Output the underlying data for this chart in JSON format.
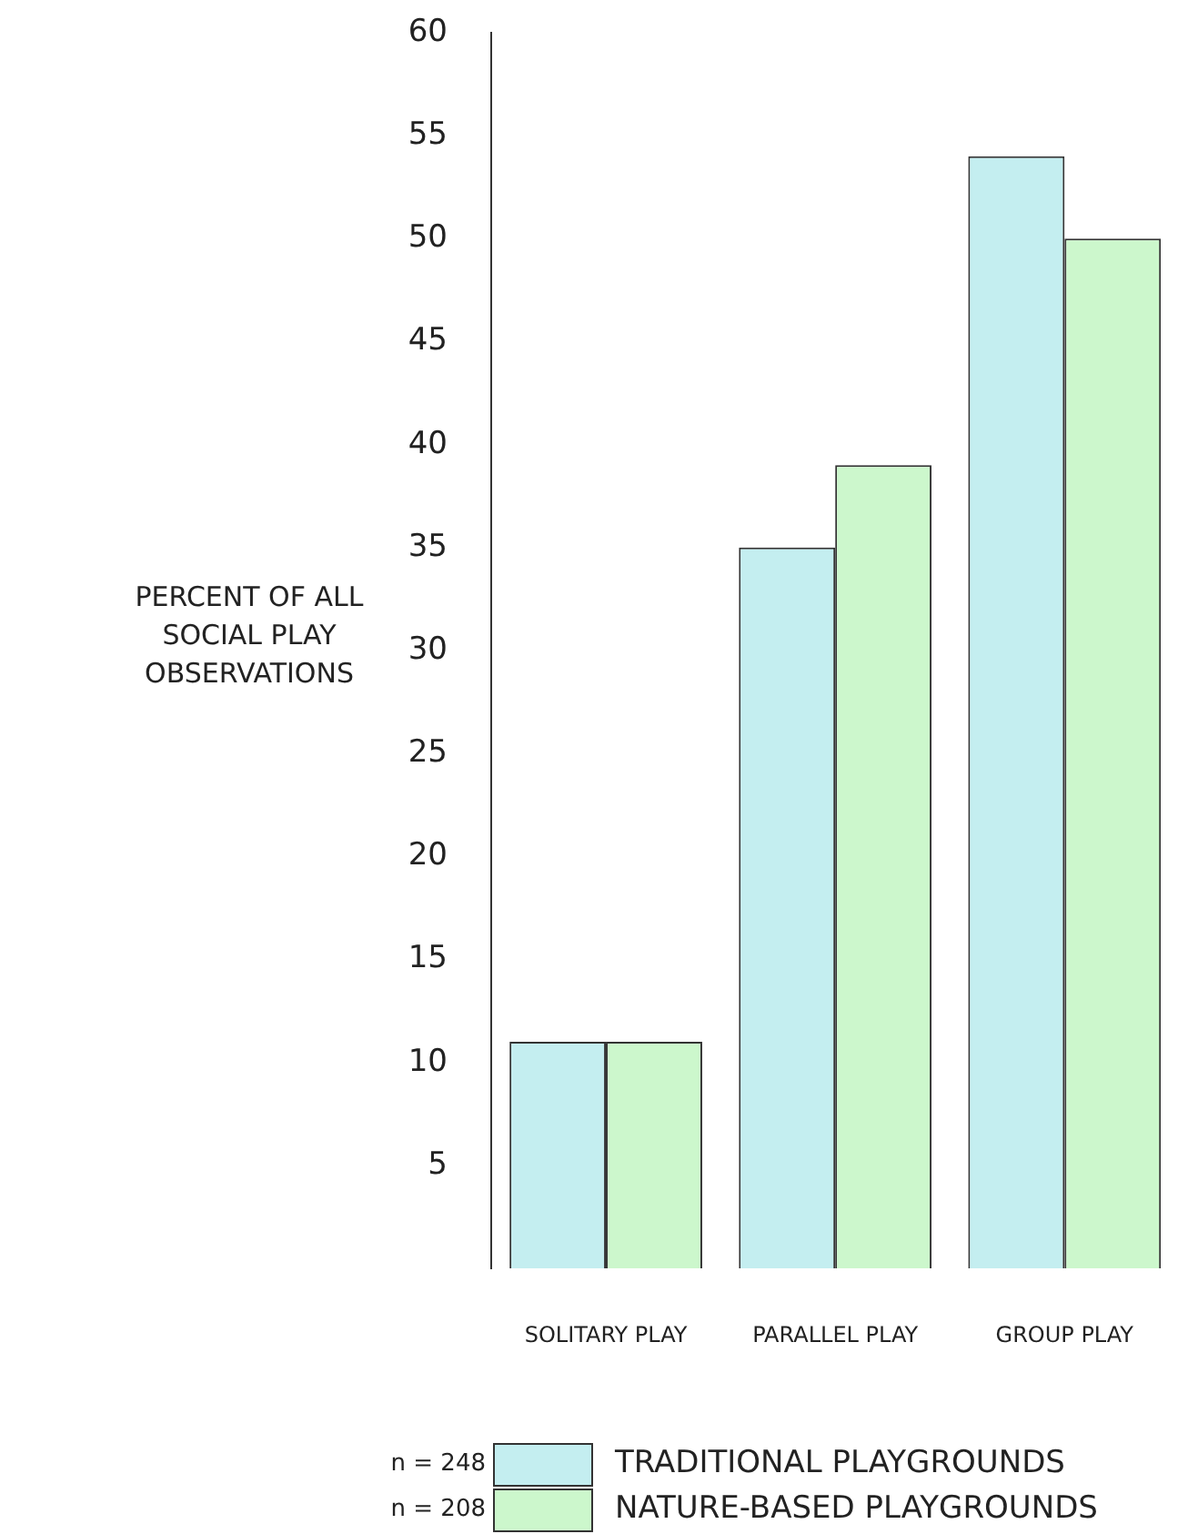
{
  "chart_data": {
    "type": "bar",
    "ylabel": "PERCENT OF ALL SOCIAL PLAY OBSERVATIONS",
    "categories": [
      "SOLITARY PLAY",
      "PARALLEL PLAY",
      "GROUP PLAY"
    ],
    "series": [
      {
        "name": "TRADITIONAL PLAYGROUNDS",
        "color": "#c4eef0",
        "values": [
          11,
          35,
          54
        ]
      },
      {
        "name": "NATURE-BASED PLAYGROUNDS",
        "color": "#ccf7cc",
        "values": [
          11,
          39,
          50
        ]
      }
    ],
    "ylim": [
      0,
      60
    ],
    "yticks": [
      5,
      10,
      15,
      20,
      25,
      30,
      35,
      40,
      45,
      50,
      55,
      60
    ],
    "grid": false,
    "legend": "bottom",
    "annotations": [
      "n = 248",
      "n = 208"
    ]
  }
}
